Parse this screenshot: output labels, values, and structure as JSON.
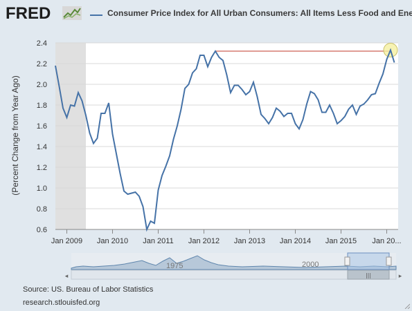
{
  "header": {
    "logo": "FRED",
    "series_title": "Consumer Price Index for All Urban Consumers: All Items Less Food and Energy"
  },
  "footer": {
    "source": "Source: US. Bureau of Labor Statistics",
    "site": "research.stlouisfed.org"
  },
  "navigator": {
    "labels": [
      "1975",
      "2000"
    ]
  },
  "colors": {
    "series": "#4572a7",
    "recession": "#e0e0e0",
    "reference_line": "#c0392b",
    "highlight": "#f5f0a0",
    "background": "#e1e9f0"
  },
  "chart_data": {
    "type": "line",
    "ylabel": "(Percent Change from Year Ago)",
    "ylim": [
      0.6,
      2.4
    ],
    "yticks": [
      0.6,
      0.8,
      1.0,
      1.2,
      1.4,
      1.6,
      1.8,
      2.0,
      2.2,
      2.4
    ],
    "xlim": [
      "2008-10",
      "2016-04"
    ],
    "xticks": [
      "2009-01",
      "2010-01",
      "2011-01",
      "2012-01",
      "2013-01",
      "2014-01",
      "2015-01",
      "2016-01"
    ],
    "xtick_labels": [
      "Jan 2009",
      "Jan 2010",
      "Jan 2011",
      "Jan 2012",
      "Jan 2013",
      "Jan 2014",
      "Jan 2015",
      "Jan 20..."
    ],
    "recession": [
      "2008-10",
      "2009-06"
    ],
    "grid": "horizontal",
    "reference_line": {
      "y": 2.32,
      "from": "2012-04",
      "to": "2016-02"
    },
    "highlight_point": {
      "date": "2016-02",
      "value": 2.33
    },
    "series": [
      {
        "name": "Consumer Price Index for All Urban Consumers: All Items Less Food and Energy",
        "x": [
          "2008-10",
          "2008-11",
          "2008-12",
          "2009-01",
          "2009-02",
          "2009-03",
          "2009-04",
          "2009-05",
          "2009-06",
          "2009-07",
          "2009-08",
          "2009-09",
          "2009-10",
          "2009-11",
          "2009-12",
          "2010-01",
          "2010-02",
          "2010-03",
          "2010-04",
          "2010-05",
          "2010-06",
          "2010-07",
          "2010-08",
          "2010-09",
          "2010-10",
          "2010-11",
          "2010-12",
          "2011-01",
          "2011-02",
          "2011-03",
          "2011-04",
          "2011-05",
          "2011-06",
          "2011-07",
          "2011-08",
          "2011-09",
          "2011-10",
          "2011-11",
          "2011-12",
          "2012-01",
          "2012-02",
          "2012-03",
          "2012-04",
          "2012-05",
          "2012-06",
          "2012-07",
          "2012-08",
          "2012-09",
          "2012-10",
          "2012-11",
          "2012-12",
          "2013-01",
          "2013-02",
          "2013-03",
          "2013-04",
          "2013-05",
          "2013-06",
          "2013-07",
          "2013-08",
          "2013-09",
          "2013-10",
          "2013-11",
          "2013-12",
          "2014-01",
          "2014-02",
          "2014-03",
          "2014-04",
          "2014-05",
          "2014-06",
          "2014-07",
          "2014-08",
          "2014-09",
          "2014-10",
          "2014-11",
          "2014-12",
          "2015-01",
          "2015-02",
          "2015-03",
          "2015-04",
          "2015-05",
          "2015-06",
          "2015-07",
          "2015-08",
          "2015-09",
          "2015-10",
          "2015-11",
          "2015-12",
          "2016-01",
          "2016-02",
          "2016-03"
        ],
        "values": [
          2.18,
          1.98,
          1.77,
          1.68,
          1.8,
          1.79,
          1.92,
          1.84,
          1.7,
          1.53,
          1.43,
          1.48,
          1.72,
          1.72,
          1.82,
          1.52,
          1.33,
          1.14,
          0.97,
          0.94,
          0.95,
          0.96,
          0.92,
          0.82,
          0.6,
          0.68,
          0.66,
          0.98,
          1.12,
          1.21,
          1.31,
          1.47,
          1.6,
          1.76,
          1.96,
          2.0,
          2.11,
          2.15,
          2.28,
          2.28,
          2.17,
          2.26,
          2.32,
          2.26,
          2.23,
          2.09,
          1.92,
          1.99,
          1.99,
          1.95,
          1.9,
          1.93,
          2.02,
          1.88,
          1.71,
          1.67,
          1.62,
          1.68,
          1.77,
          1.74,
          1.69,
          1.72,
          1.72,
          1.62,
          1.57,
          1.66,
          1.81,
          1.93,
          1.91,
          1.85,
          1.73,
          1.73,
          1.8,
          1.72,
          1.62,
          1.65,
          1.69,
          1.76,
          1.8,
          1.71,
          1.79,
          1.81,
          1.85,
          1.9,
          1.91,
          2.01,
          2.1,
          2.24,
          2.33,
          2.21
        ]
      }
    ]
  }
}
